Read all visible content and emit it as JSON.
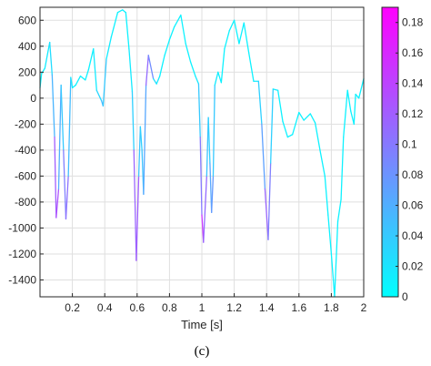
{
  "chart_data": {
    "type": "line",
    "title": "",
    "xlabel": "Time [s]",
    "ylabel": "",
    "xlim": [
      0,
      2
    ],
    "ylim": [
      -1530,
      700
    ],
    "grid": true,
    "colormap": {
      "name": "cool",
      "low_color": "#00ffff",
      "high_color": "#ff00ff",
      "clim": [
        0,
        0.19
      ]
    },
    "colorbar": {
      "ticks": [
        0,
        0.02,
        0.04,
        0.06,
        0.08,
        0.1,
        0.12,
        0.14,
        0.16,
        0.18
      ],
      "tick_labels": [
        "0",
        "0.02",
        "0.04",
        "0.06",
        "0.08",
        "0.1",
        "0.12",
        "0.14",
        "0.16",
        "0.18"
      ]
    },
    "x_ticks": [
      0.2,
      0.4,
      0.6,
      0.8,
      1,
      1.2,
      1.4,
      1.6,
      1.8,
      2
    ],
    "x_tick_labels": [
      "0.2",
      "0.4",
      "0.6",
      "0.8",
      "1",
      "1.2",
      "1.4",
      "1.6",
      "1.8",
      "2"
    ],
    "y_ticks": [
      600,
      400,
      200,
      0,
      -200,
      -400,
      -600,
      -800,
      -1000,
      -1200,
      -1400
    ],
    "y_tick_labels": [
      "600",
      "400",
      "200",
      "0",
      "-200",
      "-400",
      "-600",
      "-800",
      "-1000",
      "-1200",
      "-1400"
    ],
    "series": [
      {
        "points": [
          [
            0.0,
            80,
            0.01
          ],
          [
            0.01,
            190,
            0.01
          ],
          [
            0.03,
            230,
            0.01
          ],
          [
            0.06,
            430,
            0.02
          ],
          [
            0.075,
            180,
            0.03
          ],
          [
            0.09,
            -300,
            0.08
          ],
          [
            0.1,
            -920,
            0.16
          ],
          [
            0.115,
            -700,
            0.1
          ],
          [
            0.13,
            100,
            0.02
          ],
          [
            0.145,
            -400,
            0.06
          ],
          [
            0.16,
            -930,
            0.13
          ],
          [
            0.175,
            -600,
            0.08
          ],
          [
            0.19,
            160,
            0.02
          ],
          [
            0.2,
            80,
            0.01
          ],
          [
            0.22,
            100,
            0.01
          ],
          [
            0.25,
            170,
            0.01
          ],
          [
            0.28,
            140,
            0.01
          ],
          [
            0.3,
            220,
            0.01
          ],
          [
            0.33,
            380,
            0.01
          ],
          [
            0.35,
            60,
            0.02
          ],
          [
            0.38,
            -20,
            0.04
          ],
          [
            0.39,
            -60,
            0.06
          ],
          [
            0.41,
            300,
            0.02
          ],
          [
            0.44,
            470,
            0.01
          ],
          [
            0.48,
            660,
            0.01
          ],
          [
            0.51,
            680,
            0.01
          ],
          [
            0.53,
            660,
            0.01
          ],
          [
            0.55,
            380,
            0.01
          ],
          [
            0.57,
            50,
            0.02
          ],
          [
            0.58,
            -400,
            0.05
          ],
          [
            0.595,
            -1250,
            0.18
          ],
          [
            0.61,
            -600,
            0.06
          ],
          [
            0.62,
            -220,
            0.03
          ],
          [
            0.63,
            -400,
            0.04
          ],
          [
            0.64,
            -740,
            0.05
          ],
          [
            0.655,
            100,
            0.08
          ],
          [
            0.67,
            330,
            0.14
          ],
          [
            0.7,
            150,
            0.03
          ],
          [
            0.72,
            110,
            0.02
          ],
          [
            0.74,
            170,
            0.01
          ],
          [
            0.77,
            330,
            0.01
          ],
          [
            0.8,
            450,
            0.01
          ],
          [
            0.83,
            550,
            0.01
          ],
          [
            0.87,
            640,
            0.01
          ],
          [
            0.9,
            420,
            0.01
          ],
          [
            0.93,
            280,
            0.01
          ],
          [
            0.96,
            170,
            0.01
          ],
          [
            0.98,
            110,
            0.02
          ],
          [
            0.99,
            -300,
            0.06
          ],
          [
            1.0,
            -900,
            0.14
          ],
          [
            1.01,
            -1110,
            0.16
          ],
          [
            1.03,
            -600,
            0.06
          ],
          [
            1.04,
            -150,
            0.03
          ],
          [
            1.05,
            -500,
            0.04
          ],
          [
            1.06,
            -880,
            0.09
          ],
          [
            1.07,
            -600,
            0.06
          ],
          [
            1.08,
            100,
            0.02
          ],
          [
            1.1,
            200,
            0.01
          ],
          [
            1.12,
            120,
            0.01
          ],
          [
            1.14,
            380,
            0.01
          ],
          [
            1.17,
            520,
            0.01
          ],
          [
            1.2,
            600,
            0.01
          ],
          [
            1.23,
            420,
            0.01
          ],
          [
            1.26,
            580,
            0.01
          ],
          [
            1.29,
            350,
            0.01
          ],
          [
            1.32,
            130,
            0.01
          ],
          [
            1.35,
            130,
            0.02
          ],
          [
            1.37,
            -200,
            0.05
          ],
          [
            1.39,
            -700,
            0.09
          ],
          [
            1.41,
            -1090,
            0.14
          ],
          [
            1.425,
            -500,
            0.05
          ],
          [
            1.44,
            70,
            0.02
          ],
          [
            1.47,
            60,
            0.01
          ],
          [
            1.5,
            -180,
            0.01
          ],
          [
            1.53,
            -300,
            0.01
          ],
          [
            1.56,
            -280,
            0.01
          ],
          [
            1.6,
            -110,
            0.01
          ],
          [
            1.63,
            -170,
            0.01
          ],
          [
            1.67,
            -120,
            0.01
          ],
          [
            1.7,
            -190,
            0.01
          ],
          [
            1.73,
            -400,
            0.01
          ],
          [
            1.76,
            -600,
            0.01
          ],
          [
            1.78,
            -900,
            0.01
          ],
          [
            1.8,
            -1200,
            0.01
          ],
          [
            1.82,
            -1530,
            0.01
          ],
          [
            1.84,
            -950,
            0.01
          ],
          [
            1.86,
            -780,
            0.01
          ],
          [
            1.875,
            -300,
            0.01
          ],
          [
            1.9,
            60,
            0.01
          ],
          [
            1.92,
            -100,
            0.01
          ],
          [
            1.94,
            -200,
            0.01
          ],
          [
            1.95,
            30,
            0.01
          ],
          [
            1.97,
            0,
            0.01
          ],
          [
            2.0,
            150,
            0.01
          ]
        ]
      }
    ]
  },
  "caption": "(c)"
}
